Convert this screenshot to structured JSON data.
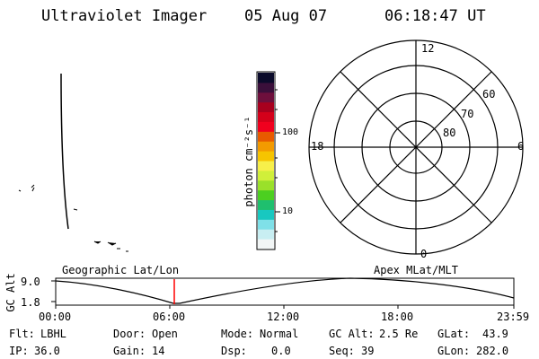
{
  "header": {
    "instrument": "Ultraviolet Imager",
    "date": "05 Aug 07",
    "time": "06:18:47 UT"
  },
  "colorbar": {
    "ylabel": "photon cm⁻²s⁻¹",
    "ticks": [
      "100",
      "10"
    ],
    "colors": [
      "#0a0a2a",
      "#3a0f3a",
      "#6e0f3c",
      "#a8001e",
      "#d4001a",
      "#f0001e",
      "#e85a00",
      "#f39a00",
      "#f6c400",
      "#f7ef4a",
      "#d0ef3a",
      "#9ae02a",
      "#4ccf20",
      "#1fbf6e",
      "#18c8c0",
      "#7fe0e8",
      "#c8eef2",
      "#f2f6f6"
    ]
  },
  "polar": {
    "mlt_labels": {
      "top": "12",
      "left": "18",
      "right": "6",
      "bottom": "0"
    },
    "lat_labels": [
      "60",
      "70",
      "80"
    ]
  },
  "timeline": {
    "left_label": "Geographic Lat/Lon",
    "right_label": "Apex MLat/MLT",
    "y_axis_label": "GC Alt",
    "y_ticks": [
      "9.0",
      "1.8"
    ],
    "x_ticks": [
      "00:00",
      "06:00",
      "12:00",
      "18:00",
      "23:59"
    ],
    "cursor_time": "06:18",
    "cursor_color": "#ff0000"
  },
  "status": {
    "filter_label": "Flt:",
    "filter_value": "LBHL",
    "ip_label": "IP:",
    "ip_value": "36.0",
    "door_label": "Door:",
    "door_value": "Open",
    "gain_label": "Gain:",
    "gain_value": "14",
    "mode_label": "Mode:",
    "mode_value": "Normal",
    "dsp_label": "Dsp:",
    "dsp_value": "0.0",
    "gcalt_label": "GC Alt:",
    "gcalt_value": "2.5 Re",
    "seq_label": "Seq:",
    "seq_value": "39",
    "glat_label": "GLat:",
    "glat_value": "43.9",
    "glon_label": "GLon:",
    "glon_value": "282.0"
  }
}
